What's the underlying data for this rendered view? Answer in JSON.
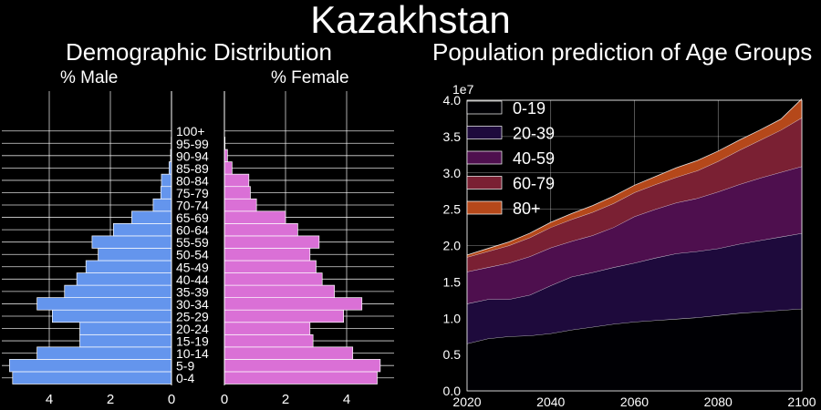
{
  "title": "Kazakhstan",
  "colors": {
    "background": "#000000",
    "male": "#6495ED",
    "female": "#DA70D6",
    "grid": "#ffffff"
  },
  "chart_data": [
    {
      "type": "bar",
      "orientation": "horizontal",
      "title": "Demographic Distribution",
      "male_label": "% Male",
      "female_label": "% Female",
      "categories": [
        "0-4",
        "5-9",
        "10-14",
        "15-19",
        "20-24",
        "25-29",
        "30-34",
        "35-39",
        "40-44",
        "45-49",
        "50-54",
        "55-59",
        "60-64",
        "65-69",
        "70-74",
        "75-79",
        "80-84",
        "85-89",
        "90-94",
        "95-99",
        "100+"
      ],
      "series": [
        {
          "name": "% Male",
          "values": [
            5.2,
            5.3,
            4.4,
            3.0,
            3.0,
            3.9,
            4.4,
            3.5,
            3.1,
            2.8,
            2.4,
            2.6,
            1.9,
            1.3,
            0.6,
            0.35,
            0.33,
            0.08,
            0.03,
            0.01,
            0.0
          ]
        },
        {
          "name": "% Female",
          "values": [
            5.0,
            5.1,
            4.2,
            2.9,
            2.8,
            3.9,
            4.5,
            3.6,
            3.2,
            3.0,
            2.8,
            3.1,
            2.4,
            2.0,
            1.05,
            0.85,
            0.8,
            0.25,
            0.1,
            0.02,
            0.0
          ]
        }
      ],
      "xlim": [
        0,
        5.5
      ],
      "xticks": [
        "4",
        "2",
        "0",
        "2",
        "4"
      ],
      "grid": true
    },
    {
      "type": "area",
      "stacked": true,
      "title": "Population prediction of Age Groups",
      "scale_label": "1e7",
      "x": [
        2020,
        2025,
        2030,
        2035,
        2040,
        2045,
        2050,
        2055,
        2060,
        2065,
        2070,
        2075,
        2080,
        2085,
        2090,
        2095,
        2100
      ],
      "series": [
        {
          "name": "0-19",
          "color": "#000004",
          "values": [
            0.65,
            0.72,
            0.75,
            0.76,
            0.79,
            0.84,
            0.88,
            0.92,
            0.95,
            0.97,
            0.99,
            1.01,
            1.04,
            1.07,
            1.09,
            1.11,
            1.13
          ]
        },
        {
          "name": "20-39",
          "color": "#1E0A3C",
          "values": [
            0.55,
            0.54,
            0.51,
            0.56,
            0.66,
            0.73,
            0.75,
            0.78,
            0.81,
            0.86,
            0.9,
            0.91,
            0.92,
            0.95,
            0.98,
            1.01,
            1.04
          ]
        },
        {
          "name": "40-59",
          "color": "#4E0F4E",
          "values": [
            0.44,
            0.44,
            0.5,
            0.53,
            0.52,
            0.49,
            0.51,
            0.55,
            0.64,
            0.67,
            0.7,
            0.73,
            0.78,
            0.82,
            0.86,
            0.89,
            0.92
          ]
        },
        {
          "name": "60-79",
          "color": "#7A2033",
          "values": [
            0.2,
            0.22,
            0.24,
            0.26,
            0.28,
            0.3,
            0.32,
            0.33,
            0.33,
            0.34,
            0.35,
            0.38,
            0.42,
            0.47,
            0.52,
            0.58,
            0.67
          ]
        },
        {
          "name": "80+",
          "color": "#B5481A",
          "values": [
            0.03,
            0.04,
            0.05,
            0.06,
            0.07,
            0.08,
            0.09,
            0.1,
            0.1,
            0.11,
            0.13,
            0.14,
            0.14,
            0.14,
            0.14,
            0.15,
            0.26
          ]
        }
      ],
      "xlabel": "",
      "ylabel": "",
      "ylim": [
        0,
        4.0
      ],
      "xticks": [
        2020,
        2040,
        2060,
        2080,
        2100
      ],
      "yticks": [
        "0.0",
        "0.5",
        "1.0",
        "1.5",
        "2.0",
        "2.5",
        "3.0",
        "3.5",
        "4.0"
      ],
      "legend": "top-left",
      "grid": true
    }
  ]
}
